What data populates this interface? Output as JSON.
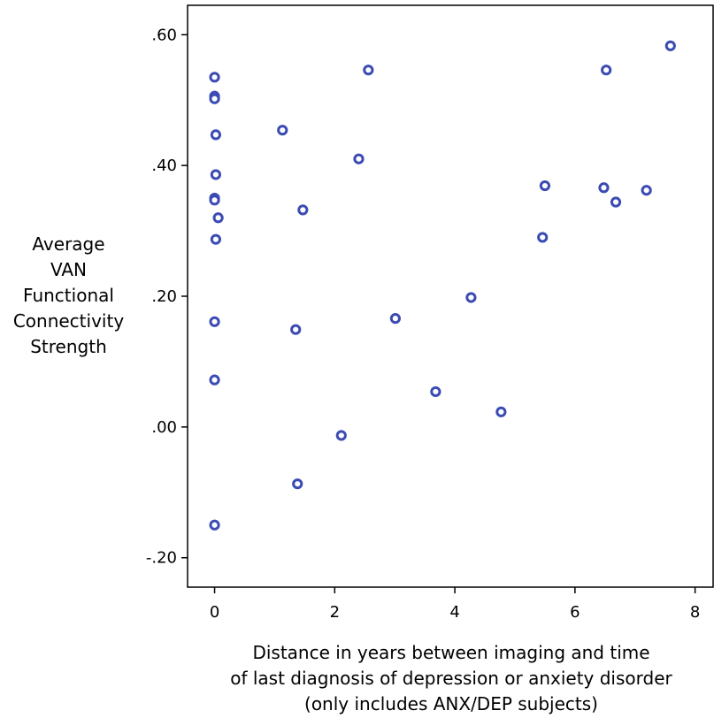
{
  "chart_data": {
    "type": "scatter",
    "xlabel_lines": [
      "Distance in years between imaging and time",
      "of last diagnosis of depression or anxiety disorder",
      "(only includes ANX/DEP subjects)"
    ],
    "ylabel_lines": [
      "Average",
      "VAN",
      "Functional",
      "Connectivity",
      "Strength"
    ],
    "xlim": [
      -0.45,
      8.3
    ],
    "ylim": [
      -0.245,
      0.645
    ],
    "x_ticks": [
      0,
      2,
      4,
      6,
      8
    ],
    "x_tick_labels": [
      "0",
      "2",
      "4",
      "6",
      "8"
    ],
    "y_ticks": [
      -0.2,
      0.0,
      0.2,
      0.4,
      0.6
    ],
    "y_tick_labels": [
      "-.20",
      ".00",
      ".20",
      ".40",
      ".60"
    ],
    "grid": false,
    "marker_color": "#3b4bb3",
    "points": [
      {
        "x": 0.0,
        "y": 0.535
      },
      {
        "x": 0.0,
        "y": 0.506
      },
      {
        "x": 0.0,
        "y": 0.502
      },
      {
        "x": 0.02,
        "y": 0.447
      },
      {
        "x": 0.02,
        "y": 0.386
      },
      {
        "x": 0.0,
        "y": 0.35
      },
      {
        "x": 0.0,
        "y": 0.347
      },
      {
        "x": 0.06,
        "y": 0.32
      },
      {
        "x": 0.02,
        "y": 0.287
      },
      {
        "x": 0.0,
        "y": 0.161
      },
      {
        "x": 0.0,
        "y": 0.072
      },
      {
        "x": 0.0,
        "y": -0.15
      },
      {
        "x": 1.13,
        "y": 0.454
      },
      {
        "x": 1.47,
        "y": 0.332
      },
      {
        "x": 1.35,
        "y": 0.149
      },
      {
        "x": 1.38,
        "y": -0.087
      },
      {
        "x": 2.11,
        "y": -0.013
      },
      {
        "x": 2.4,
        "y": 0.41
      },
      {
        "x": 2.56,
        "y": 0.546
      },
      {
        "x": 3.01,
        "y": 0.166
      },
      {
        "x": 3.68,
        "y": 0.054
      },
      {
        "x": 4.27,
        "y": 0.198
      },
      {
        "x": 4.77,
        "y": 0.023
      },
      {
        "x": 5.46,
        "y": 0.29
      },
      {
        "x": 5.5,
        "y": 0.369
      },
      {
        "x": 6.48,
        "y": 0.366
      },
      {
        "x": 6.52,
        "y": 0.546
      },
      {
        "x": 6.68,
        "y": 0.344
      },
      {
        "x": 7.19,
        "y": 0.362
      },
      {
        "x": 7.59,
        "y": 0.583
      }
    ]
  }
}
